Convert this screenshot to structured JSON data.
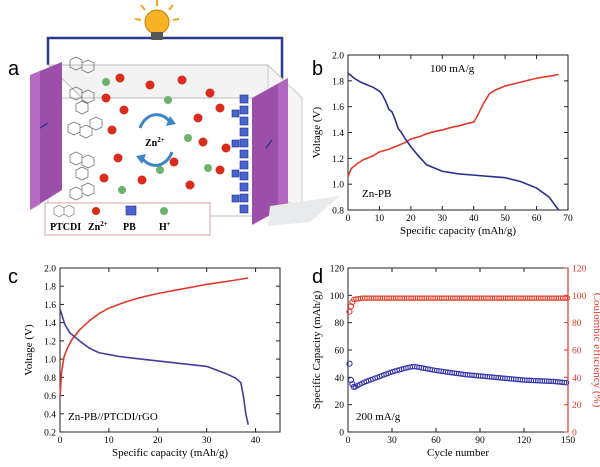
{
  "panels": {
    "a": "a",
    "b": "b",
    "c": "c",
    "d": "d"
  },
  "schematic": {
    "ion_label": "Zn",
    "ion_charge": "2+",
    "legend": {
      "ptcdi": "PTCDI",
      "zn": "Zn",
      "zn_charge": "2+",
      "pb": "PB",
      "h": "H",
      "h_charge": "+"
    },
    "colors": {
      "electrode": "#9b4fa8",
      "zn_ion": "#d92b1e",
      "h_ion": "#6db36b",
      "pb": "#3a55c8",
      "wire": "#2a3b8f",
      "bulb": "#f3a51c"
    },
    "icons": [
      "light-bulb-icon",
      "rotation-arrows-icon",
      "ptcdi-molecule-icon",
      "pb-cube-icon"
    ]
  },
  "chart_data": [
    {
      "id": "b",
      "type": "line",
      "title": "",
      "xlabel": "Specific capacity (mAh/g)",
      "ylabel": "Voltage (V)",
      "xlim": [
        0,
        70
      ],
      "ylim": [
        0.8,
        2.0
      ],
      "xticks": [
        0,
        10,
        20,
        30,
        40,
        50,
        60,
        70
      ],
      "yticks": [
        0.8,
        1.0,
        1.2,
        1.4,
        1.6,
        1.8,
        2.0
      ],
      "annotations": [
        "100 mA/g",
        "Zn-PB"
      ],
      "series": [
        {
          "color": "#e23a2a",
          "x": [
            0,
            1,
            3,
            5,
            8,
            10,
            13,
            15,
            18,
            20,
            23,
            25,
            28,
            30,
            33,
            35,
            38,
            40,
            41,
            42,
            43,
            44,
            45,
            47,
            50,
            55,
            60,
            65,
            67
          ],
          "y": [
            1.06,
            1.12,
            1.16,
            1.19,
            1.22,
            1.25,
            1.27,
            1.29,
            1.32,
            1.35,
            1.37,
            1.39,
            1.41,
            1.42,
            1.44,
            1.45,
            1.47,
            1.48,
            1.52,
            1.57,
            1.62,
            1.66,
            1.7,
            1.73,
            1.76,
            1.79,
            1.82,
            1.84,
            1.85
          ]
        },
        {
          "color": "#2c2f8f",
          "x": [
            0,
            2,
            4,
            6,
            8,
            10,
            11,
            12,
            13,
            14,
            15,
            16,
            17,
            18,
            20,
            22,
            25,
            30,
            35,
            40,
            45,
            50,
            55,
            60,
            64,
            67
          ],
          "y": [
            1.86,
            1.82,
            1.79,
            1.77,
            1.75,
            1.72,
            1.69,
            1.64,
            1.58,
            1.56,
            1.5,
            1.43,
            1.4,
            1.36,
            1.29,
            1.23,
            1.15,
            1.1,
            1.08,
            1.07,
            1.06,
            1.05,
            1.02,
            0.97,
            0.9,
            0.8
          ]
        }
      ]
    },
    {
      "id": "c",
      "type": "line",
      "title": "",
      "xlabel": "Specific capacity (mAh/g)",
      "ylabel": "Voltage (V)",
      "xlim": [
        0,
        45
      ],
      "ylim": [
        0.2,
        2.0
      ],
      "xticks": [
        0,
        10,
        20,
        30,
        40
      ],
      "yticks": [
        0.2,
        0.4,
        0.6,
        0.8,
        1.0,
        1.2,
        1.4,
        1.6,
        1.8,
        2.0
      ],
      "annotations": [
        "Zn-PB//PTCDI/rGO"
      ],
      "series": [
        {
          "color": "#e23a2a",
          "x": [
            0,
            0.3,
            0.8,
            1.5,
            2.5,
            4,
            6,
            8,
            10,
            13,
            16,
            20,
            25,
            30,
            35,
            38.5
          ],
          "y": [
            0.58,
            0.85,
            1.02,
            1.12,
            1.22,
            1.32,
            1.42,
            1.5,
            1.56,
            1.62,
            1.67,
            1.72,
            1.77,
            1.82,
            1.86,
            1.89
          ]
        },
        {
          "color": "#4b3a9a",
          "x": [
            0,
            1,
            2,
            4,
            6,
            8,
            10,
            12,
            15,
            20,
            25,
            30,
            32,
            34,
            36,
            37,
            37.5,
            38,
            38.5
          ],
          "y": [
            1.55,
            1.38,
            1.29,
            1.2,
            1.12,
            1.07,
            1.05,
            1.03,
            1.01,
            0.98,
            0.95,
            0.92,
            0.88,
            0.84,
            0.79,
            0.74,
            0.6,
            0.4,
            0.28
          ]
        }
      ]
    },
    {
      "id": "d",
      "type": "scatter",
      "title": "",
      "xlabel": "Cycle number",
      "ylabel": "Specific Capacity (mAh/g)",
      "y2label": "Coulombic efficiency (%)",
      "xlim": [
        0,
        150
      ],
      "ylim": [
        0,
        120
      ],
      "y2lim": [
        0,
        120
      ],
      "xticks": [
        0,
        30,
        60,
        90,
        120,
        150
      ],
      "yticks": [
        0,
        20,
        40,
        60,
        80,
        100,
        120
      ],
      "y2ticks": [
        0,
        20,
        40,
        60,
        80,
        100,
        120
      ],
      "annotations": [
        "200 mA/g"
      ],
      "series": [
        {
          "axis": "left",
          "color": "#2f2fa8",
          "first_points": [
            [
              1,
              50
            ],
            [
              2,
              38
            ],
            [
              3,
              35
            ],
            [
              4,
              33
            ]
          ],
          "x_curve": [
            5,
            10,
            20,
            30,
            40,
            45,
            50,
            60,
            80,
            100,
            120,
            140,
            150
          ],
          "y_curve": [
            33,
            36,
            40,
            44,
            47,
            48,
            47,
            45,
            42,
            40,
            38,
            37,
            36
          ]
        },
        {
          "axis": "right",
          "color": "#e23a2a",
          "first_points": [
            [
              1,
              88
            ],
            [
              2,
              92
            ],
            [
              3,
              95
            ]
          ],
          "x_curve": [
            4,
            10,
            30,
            60,
            90,
            120,
            150
          ],
          "y_curve": [
            97,
            98,
            98,
            98,
            98,
            98,
            98
          ]
        }
      ]
    }
  ]
}
